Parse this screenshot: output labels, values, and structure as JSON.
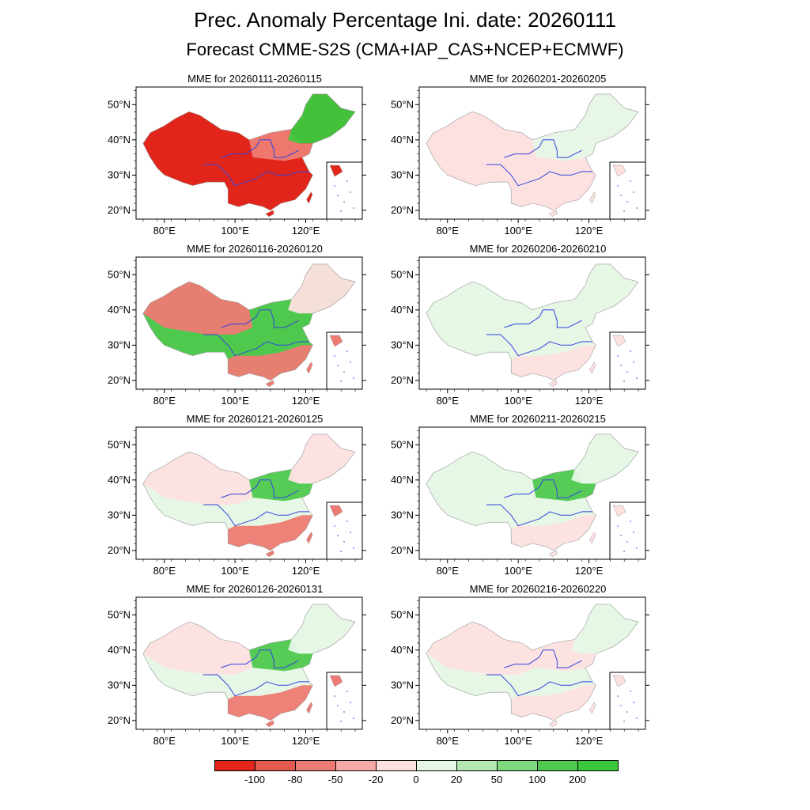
{
  "figure": {
    "title_line1": "Prec. Anomaly Percentage Ini. date: 20260111",
    "title_line2": "Forecast CMME-S2S (CMA+IAP_CAS+NCEP+ECMWF)"
  },
  "axes": {
    "lat_labels": [
      "50°N",
      "40°N",
      "30°N",
      "20°N"
    ],
    "lon_labels": [
      "80°E",
      "100°E",
      "120°E"
    ]
  },
  "panels": [
    {
      "title": "MME for 20260111-20260115",
      "pattern": {
        "north": -2,
        "central": -3,
        "south": -3,
        "northeast": 3,
        "northwest": -3
      }
    },
    {
      "title": "MME for 20260116-20260120",
      "pattern": {
        "north": 2,
        "central": 2,
        "south": -2,
        "northeast": -1,
        "northwest": -2
      }
    },
    {
      "title": "MME for 20260121-20260125",
      "pattern": {
        "north": 2,
        "central": 1,
        "south": -2,
        "northeast": -1,
        "northwest": -1
      }
    },
    {
      "title": "MME for 20260126-20260131",
      "pattern": {
        "north": 2,
        "central": 1,
        "south": -2,
        "northeast": 1,
        "northwest": -1
      }
    },
    {
      "title": "MME for 20260201-20260205",
      "pattern": {
        "north": 1,
        "central": -1,
        "south": -1,
        "northeast": 1,
        "northwest": -1
      }
    },
    {
      "title": "MME for 20260206-20260210",
      "pattern": {
        "north": 1,
        "central": 1,
        "south": -1,
        "northeast": 1,
        "northwest": 1
      }
    },
    {
      "title": "MME for 20260211-20260215",
      "pattern": {
        "north": 2,
        "central": 1,
        "south": -1,
        "northeast": 1,
        "northwest": 1
      }
    },
    {
      "title": "MME for 20260216-20260220",
      "pattern": {
        "north": -1,
        "central": 1,
        "south": -1,
        "northeast": 1,
        "northwest": -1
      }
    }
  ],
  "colorbar": {
    "labels": [
      "-100",
      "-80",
      "-50",
      "-20",
      "0",
      "20",
      "50",
      "100",
      "200"
    ],
    "colors": [
      "#e2251a",
      "#e55a4e",
      "#ee7b73",
      "#f5a9a9",
      "#fde0e0",
      "#e6f7e6",
      "#b3e8b3",
      "#7ed87e",
      "#4ec94e",
      "#3cc83c"
    ]
  }
}
